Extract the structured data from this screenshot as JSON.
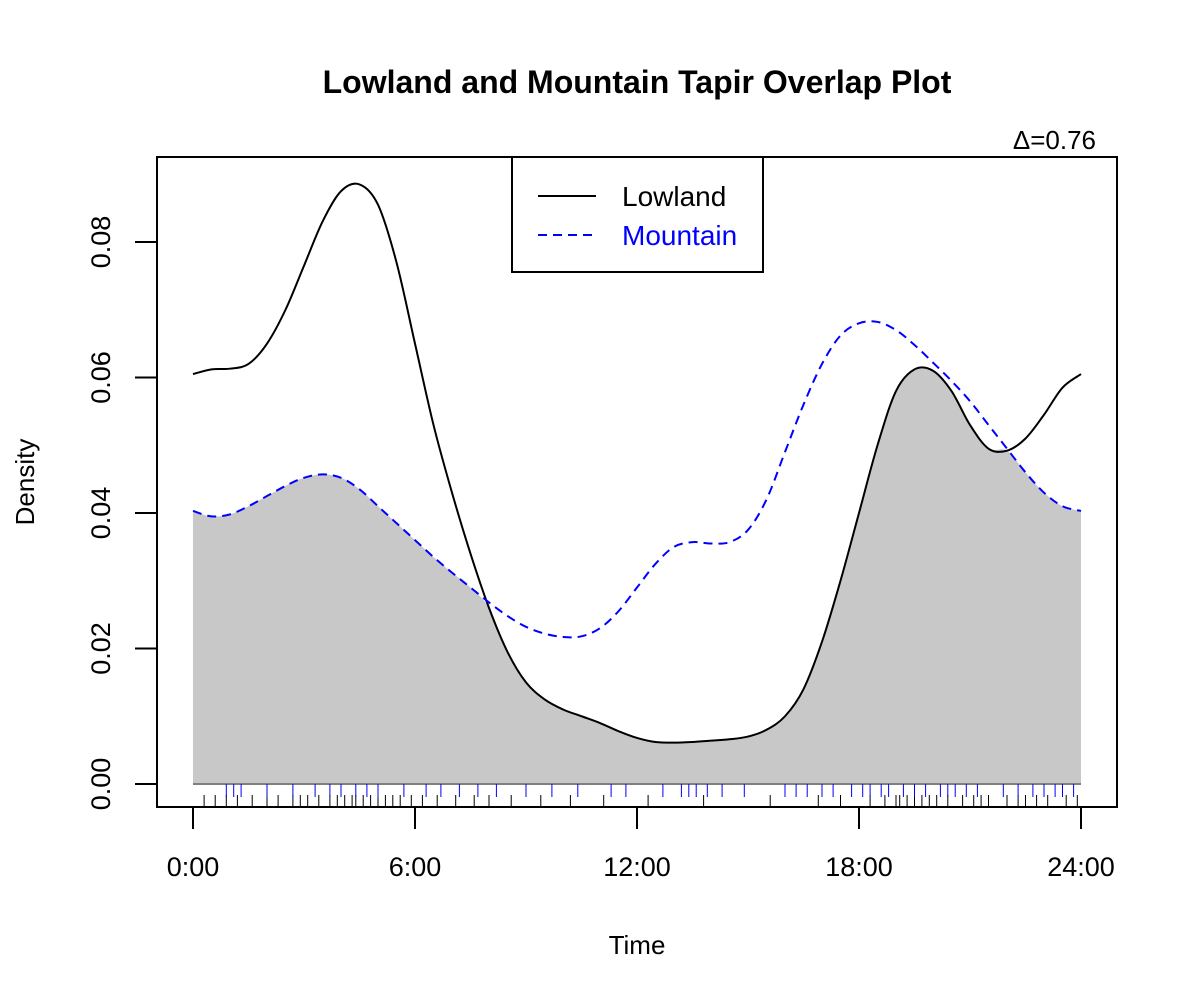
{
  "chart_data": {
    "type": "line",
    "title": "Lowland and Mountain Tapir Overlap Plot",
    "annotation": "Δ=0.76",
    "xlabel": "Time",
    "ylabel": "Density",
    "xlim": [
      0,
      24
    ],
    "ylim": [
      0,
      0.09
    ],
    "x_ticks": [
      0,
      6,
      12,
      18,
      24
    ],
    "x_tick_labels": [
      "0:00",
      "6:00",
      "12:00",
      "18:00",
      "24:00"
    ],
    "y_ticks": [
      0,
      0.02,
      0.04,
      0.06,
      0.08
    ],
    "y_tick_labels": [
      "0.00",
      "0.02",
      "0.04",
      "0.06",
      "0.08"
    ],
    "legend": {
      "position": "top-center"
    },
    "overlap_fill_color": "#c8c8c8",
    "series": [
      {
        "name": "Lowland",
        "style": "solid",
        "color": "#000000",
        "x": [
          0,
          0.5,
          1,
          1.5,
          2,
          2.5,
          3,
          3.5,
          4,
          4.5,
          5,
          5.5,
          6,
          6.5,
          7,
          7.5,
          8,
          8.5,
          9,
          9.5,
          10,
          10.5,
          11,
          11.5,
          12,
          12.5,
          13,
          13.5,
          14,
          14.5,
          15,
          15.5,
          16,
          16.5,
          17,
          17.5,
          18,
          18.5,
          19,
          19.5,
          20,
          20.5,
          21,
          21.5,
          22,
          22.5,
          23,
          23.5,
          24
        ],
        "values": [
          0.0605,
          0.0612,
          0.0613,
          0.062,
          0.065,
          0.07,
          0.0765,
          0.083,
          0.0875,
          0.0885,
          0.0855,
          0.077,
          0.065,
          0.053,
          0.043,
          0.034,
          0.026,
          0.0195,
          0.015,
          0.0125,
          0.011,
          0.01,
          0.009,
          0.0078,
          0.0068,
          0.0062,
          0.0061,
          0.0062,
          0.0064,
          0.0066,
          0.007,
          0.008,
          0.01,
          0.014,
          0.021,
          0.03,
          0.04,
          0.05,
          0.058,
          0.0612,
          0.061,
          0.058,
          0.053,
          0.0495,
          0.0492,
          0.051,
          0.0545,
          0.0585,
          0.0605
        ],
        "rug": [
          0.3,
          0.6,
          0.9,
          1.2,
          1.6,
          2.0,
          2.3,
          2.7,
          2.9,
          3.1,
          3.4,
          3.7,
          3.9,
          4.1,
          4.3,
          4.4,
          4.6,
          4.8,
          5.0,
          5.2,
          5.4,
          5.6,
          5.9,
          6.2,
          6.6,
          7.1,
          7.6,
          8.0,
          8.6,
          9.4,
          10.2,
          11.1,
          12.3,
          13.8,
          15.6,
          16.9,
          17.5,
          18.3,
          18.7,
          19.0,
          19.1,
          19.3,
          19.5,
          19.7,
          19.9,
          20.1,
          20.4,
          20.8,
          21.1,
          21.3,
          21.5,
          22.0,
          22.3,
          22.5,
          22.8,
          23.1,
          23.6,
          23.9
        ]
      },
      {
        "name": "Mountain",
        "style": "dashed",
        "color": "#0000ff",
        "x": [
          0,
          0.5,
          1,
          1.5,
          2,
          2.5,
          3,
          3.5,
          4,
          4.5,
          5,
          5.5,
          6,
          6.5,
          7,
          7.5,
          8,
          8.5,
          9,
          9.5,
          10,
          10.5,
          11,
          11.5,
          12,
          12.5,
          13,
          13.5,
          14,
          14.5,
          15,
          15.5,
          16,
          16.5,
          17,
          17.5,
          18,
          18.5,
          19,
          19.5,
          20,
          20.5,
          21,
          21.5,
          22,
          22.5,
          23,
          23.5,
          24
        ],
        "values": [
          0.0403,
          0.0395,
          0.0398,
          0.041,
          0.0425,
          0.044,
          0.0452,
          0.0457,
          0.0452,
          0.0435,
          0.041,
          0.0385,
          0.036,
          0.0335,
          0.0312,
          0.029,
          0.0268,
          0.0248,
          0.0232,
          0.0222,
          0.0217,
          0.0218,
          0.023,
          0.0255,
          0.029,
          0.0325,
          0.035,
          0.0357,
          0.0355,
          0.0357,
          0.0375,
          0.042,
          0.049,
          0.056,
          0.062,
          0.0662,
          0.068,
          0.0682,
          0.067,
          0.0648,
          0.0622,
          0.0595,
          0.0565,
          0.053,
          0.0495,
          0.046,
          0.043,
          0.041,
          0.0403
        ],
        "rug": [
          0.9,
          1.1,
          1.3,
          2.0,
          2.7,
          3.3,
          3.7,
          4.0,
          4.4,
          4.7,
          5.0,
          5.7,
          6.3,
          6.7,
          7.2,
          7.7,
          8.2,
          9.0,
          9.7,
          10.4,
          11.3,
          11.7,
          12.7,
          13.2,
          13.4,
          13.6,
          13.9,
          14.3,
          14.9,
          16.0,
          16.3,
          16.6,
          17.0,
          17.3,
          17.8,
          18.1,
          18.3,
          18.6,
          18.8,
          19.2,
          19.5,
          19.8,
          20.2,
          20.4,
          20.6,
          20.9,
          21.2,
          21.9,
          22.3,
          22.7,
          23.0,
          23.3,
          23.5,
          23.8
        ]
      }
    ]
  }
}
